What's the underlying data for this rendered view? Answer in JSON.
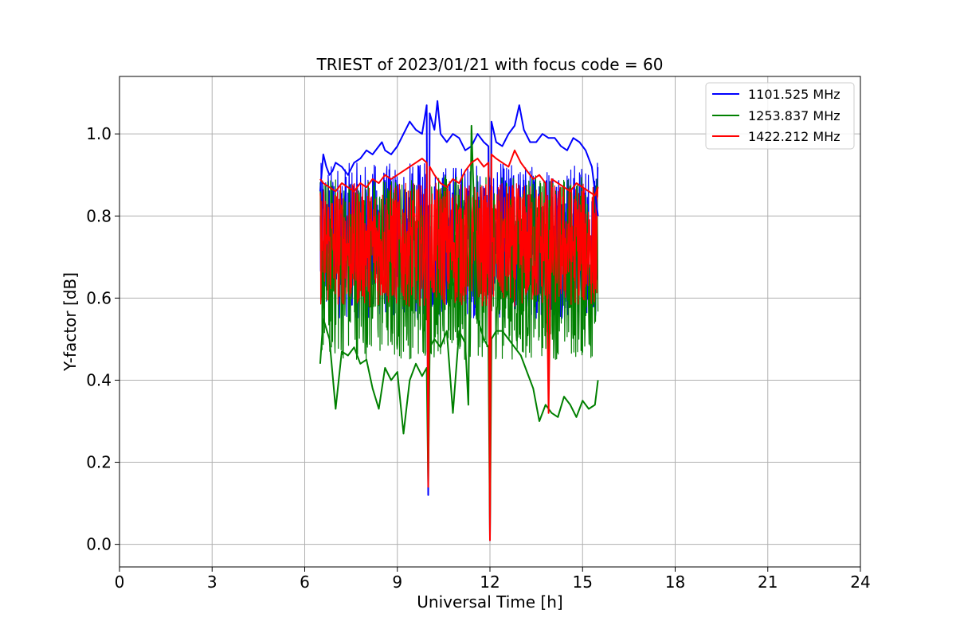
{
  "chart_data": {
    "type": "line",
    "title": "TRIEST of 2023/01/21 with focus code = 60",
    "xlabel": "Universal Time [h]",
    "ylabel": "Y-factor [dB]",
    "xlim": [
      0,
      24
    ],
    "ylim": [
      -0.055,
      1.14
    ],
    "xticks": [
      0,
      3,
      6,
      9,
      12,
      15,
      18,
      21,
      24
    ],
    "yticks": [
      0.0,
      0.2,
      0.4,
      0.6,
      0.8,
      1.0
    ],
    "ytick_labels": [
      "0.0",
      "0.2",
      "0.4",
      "0.6",
      "0.8",
      "1.0"
    ],
    "grid": true,
    "legend_position": "top-right",
    "data_range_x": [
      6.5,
      15.5
    ],
    "series": [
      {
        "name": "1101.525 MHz",
        "color": "#0000ff",
        "x": [
          6.5,
          6.6,
          6.7,
          6.8,
          6.9,
          7.0,
          7.2,
          7.4,
          7.6,
          7.8,
          8.0,
          8.2,
          8.4,
          8.5,
          8.6,
          8.8,
          9.0,
          9.2,
          9.4,
          9.5,
          9.6,
          9.8,
          9.95,
          10.0,
          10.05,
          10.2,
          10.3,
          10.4,
          10.6,
          10.8,
          11.0,
          11.2,
          11.4,
          11.6,
          11.8,
          11.95,
          12.0,
          12.05,
          12.2,
          12.4,
          12.6,
          12.8,
          12.95,
          13.1,
          13.3,
          13.5,
          13.7,
          13.9,
          14.1,
          14.3,
          14.5,
          14.7,
          14.9,
          15.1,
          15.3,
          15.5
        ],
        "values": [
          0.86,
          0.95,
          0.92,
          0.9,
          0.91,
          0.93,
          0.92,
          0.9,
          0.93,
          0.94,
          0.96,
          0.95,
          0.97,
          0.98,
          0.96,
          0.95,
          0.97,
          1.0,
          1.03,
          1.02,
          1.01,
          1.0,
          1.07,
          0.12,
          1.05,
          1.01,
          1.08,
          1.0,
          0.98,
          1.0,
          0.99,
          0.96,
          0.97,
          1.0,
          0.98,
          0.97,
          0.01,
          1.03,
          0.98,
          0.97,
          1.0,
          1.02,
          1.07,
          1.01,
          0.98,
          0.98,
          1.0,
          0.99,
          0.99,
          0.97,
          0.96,
          0.99,
          0.98,
          0.96,
          0.92,
          0.8
        ]
      },
      {
        "name": "1253.837 MHz",
        "color": "#008000",
        "x": [
          6.5,
          6.6,
          6.8,
          7.0,
          7.2,
          7.4,
          7.6,
          7.8,
          8.0,
          8.2,
          8.4,
          8.6,
          8.8,
          9.0,
          9.2,
          9.4,
          9.6,
          9.8,
          9.95,
          10.0,
          10.05,
          10.2,
          10.4,
          10.6,
          10.8,
          11.0,
          11.2,
          11.3,
          11.4,
          11.6,
          11.8,
          11.95,
          12.0,
          12.05,
          12.2,
          12.4,
          12.6,
          12.8,
          13.0,
          13.2,
          13.4,
          13.6,
          13.8,
          14.0,
          14.2,
          14.4,
          14.6,
          14.8,
          15.0,
          15.2,
          15.4,
          15.5
        ],
        "values": [
          0.44,
          0.55,
          0.5,
          0.33,
          0.47,
          0.46,
          0.48,
          0.44,
          0.45,
          0.38,
          0.33,
          0.43,
          0.4,
          0.42,
          0.27,
          0.4,
          0.44,
          0.41,
          0.43,
          0.15,
          0.48,
          0.5,
          0.48,
          0.52,
          0.32,
          0.52,
          0.49,
          0.34,
          1.02,
          0.55,
          0.5,
          0.48,
          0.02,
          0.5,
          0.52,
          0.52,
          0.5,
          0.48,
          0.46,
          0.42,
          0.38,
          0.3,
          0.34,
          0.32,
          0.31,
          0.36,
          0.34,
          0.31,
          0.35,
          0.33,
          0.34,
          0.4
        ]
      },
      {
        "name": "1422.212 MHz",
        "color": "#ff0000",
        "x": [
          6.5,
          6.6,
          6.8,
          7.0,
          7.2,
          7.4,
          7.6,
          7.8,
          8.0,
          8.2,
          8.4,
          8.6,
          8.8,
          9.0,
          9.2,
          9.4,
          9.6,
          9.8,
          9.95,
          10.0,
          10.05,
          10.2,
          10.4,
          10.6,
          10.8,
          11.0,
          11.2,
          11.4,
          11.6,
          11.8,
          11.95,
          12.0,
          12.05,
          12.2,
          12.4,
          12.6,
          12.8,
          13.0,
          13.2,
          13.4,
          13.6,
          13.8,
          13.9,
          14.0,
          14.2,
          14.4,
          14.6,
          14.8,
          15.0,
          15.2,
          15.4,
          15.5
        ],
        "values": [
          0.89,
          0.88,
          0.87,
          0.86,
          0.88,
          0.87,
          0.86,
          0.88,
          0.87,
          0.89,
          0.88,
          0.9,
          0.89,
          0.9,
          0.91,
          0.92,
          0.93,
          0.94,
          0.93,
          0.14,
          0.92,
          0.9,
          0.88,
          0.87,
          0.89,
          0.88,
          0.91,
          0.93,
          0.94,
          0.92,
          0.93,
          0.01,
          0.95,
          0.94,
          0.93,
          0.92,
          0.96,
          0.93,
          0.91,
          0.89,
          0.9,
          0.88,
          0.32,
          0.89,
          0.88,
          0.87,
          0.86,
          0.88,
          0.87,
          0.86,
          0.85,
          0.87
        ]
      }
    ],
    "envelope_band": [
      {
        "name": "1101.525 MHz",
        "color": "#0000ff",
        "top": 0.93,
        "bottom": 0.55
      },
      {
        "name": "1253.837 MHz",
        "color": "#008000",
        "top": 0.9,
        "bottom": 0.45
      },
      {
        "name": "1422.212 MHz",
        "color": "#ff0000",
        "top": 0.88,
        "bottom": 0.58
      }
    ]
  }
}
